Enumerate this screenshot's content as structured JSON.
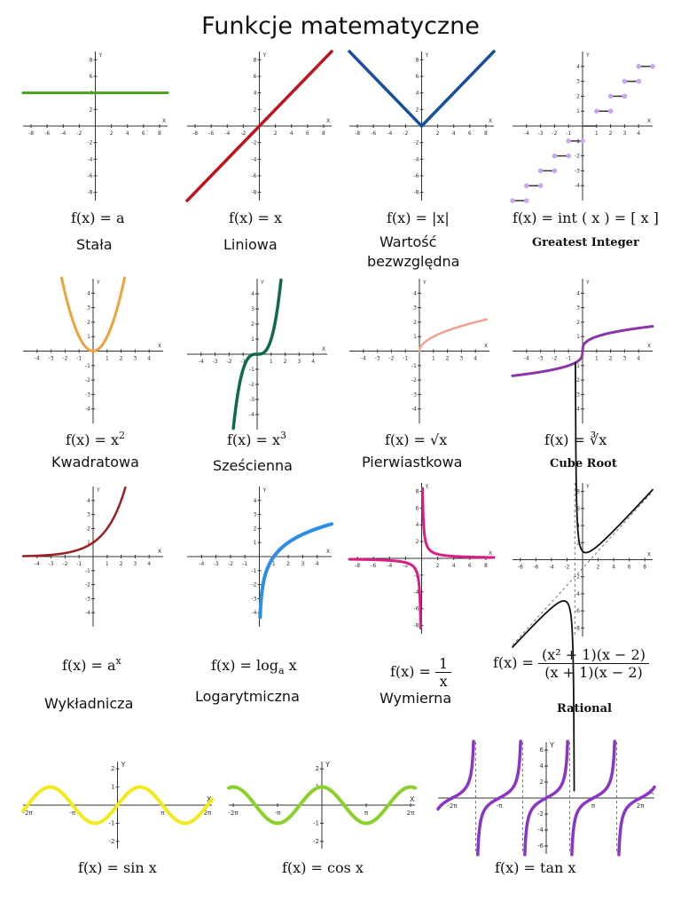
{
  "title": "Funkcje matematyczne",
  "colors": {
    "constant": "#4a9e1c",
    "linear": "#c0141c",
    "absolute": "#164f9c",
    "int_marker": "#c9a6ee",
    "square": "#f0a23a",
    "cube": "#0e6b4a",
    "sqrt": "#f2a090",
    "cbrt": "#8a36a6",
    "exp": "#9c1e1e",
    "log": "#2b8de6",
    "recip": "#d91e84",
    "rational": "#111111",
    "sin": "#f3ea1e",
    "cos": "#8cd02a",
    "tan": "#8a35c9"
  },
  "panels": [
    {
      "id": "constant",
      "formula": "f(x) = a",
      "label": "Stała"
    },
    {
      "id": "linear",
      "formula": "f(x) = x",
      "label": "Liniowa"
    },
    {
      "id": "absolute",
      "formula": "f(x) = |x|",
      "label_lines": [
        "Wartość",
        "bezwzględna"
      ]
    },
    {
      "id": "greatest-integer",
      "formula": "f(x) = int ( x ) = [ x ]",
      "label": "Greatest Integer"
    },
    {
      "id": "square",
      "formula_base": "f(x) = x",
      "formula_sup": "2",
      "label": "Kwadratowa"
    },
    {
      "id": "cube",
      "formula_base": "f(x) = x",
      "formula_sup": "3",
      "label": "Sześcienna"
    },
    {
      "id": "sqrt",
      "formula_base": "f(x) = ",
      "formula_radical": "√x",
      "label": "Pierwiastkowa"
    },
    {
      "id": "cbrt",
      "formula_base": "f(x) = ",
      "formula_radical": "∛x",
      "label": "Cube Root"
    },
    {
      "id": "exp",
      "formula_base": "f(x) = a",
      "formula_sup": "x",
      "label": "Wykładnicza"
    },
    {
      "id": "log",
      "formula_base": "f(x) = log",
      "formula_sub": "a",
      "formula_tail": " x",
      "label": "Logarytmiczna"
    },
    {
      "id": "reciprocal",
      "formula_base": "f(x) = ",
      "formula_num": "1",
      "formula_den": "x",
      "label": "Wymierna"
    },
    {
      "id": "rational",
      "formula_base": "f(x) = ",
      "formula_num": "(x² + 1)(x − 2)",
      "formula_den": "(x + 1)(x − 2)",
      "label": "Rational"
    },
    {
      "id": "sin",
      "formula": "f(x) = sin x"
    },
    {
      "id": "cos",
      "formula": "f(x) = cos x"
    },
    {
      "id": "tan",
      "formula": "f(x) = tan x"
    }
  ],
  "axis_ticks": {
    "row1": [
      "-8",
      "-6",
      "-4",
      "-2",
      "2",
      "4",
      "6",
      "8"
    ],
    "row2": [
      "-4",
      "-3",
      "-2",
      "-1",
      "1",
      "2",
      "3",
      "4"
    ],
    "trig": [
      "-2π",
      "-π",
      "π",
      "2π"
    ],
    "trig_y": [
      "2",
      "1",
      "-1",
      "-2"
    ],
    "tan_y": [
      "6",
      "4",
      "2",
      "-2",
      "-4",
      "-6"
    ],
    "y_axis_label": "Y",
    "x_axis_label": "X"
  }
}
